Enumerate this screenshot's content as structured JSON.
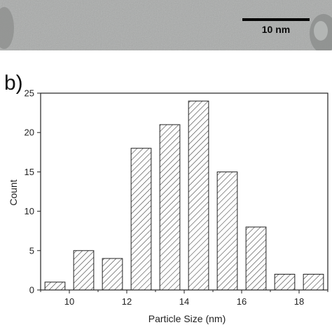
{
  "panel_label": "b)",
  "image_strip": {
    "scale_bar_label": "10 nm"
  },
  "colors": {
    "bar_stroke": "#222222",
    "hatch": "#333333",
    "strip_bg": "#a7a9a8"
  },
  "chart_data": {
    "type": "bar",
    "title": "",
    "xlabel": "Particle Size (nm)",
    "ylabel": "Count",
    "x": [
      9.5,
      10.5,
      11.5,
      12.5,
      13.5,
      14.5,
      15.5,
      16.5,
      17.5,
      18.5
    ],
    "values": [
      1,
      5,
      4,
      18,
      21,
      24,
      15,
      8,
      2,
      2
    ],
    "bar_width": 0.7,
    "xlim": [
      9,
      19
    ],
    "ylim": [
      0,
      25
    ],
    "xticks": [
      "10",
      "12",
      "14",
      "16",
      "18"
    ],
    "yticks": [
      "0",
      "5",
      "10",
      "15",
      "20",
      "25"
    ],
    "fill": "diagonal-hatch",
    "grid": false
  }
}
